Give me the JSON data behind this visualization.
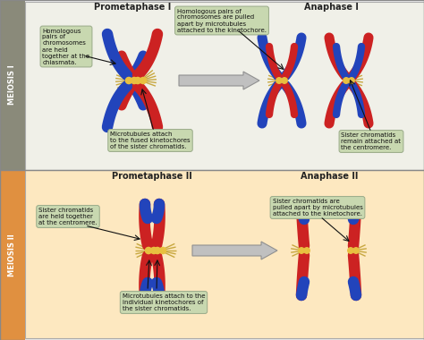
{
  "bg_top": "#f0f0e8",
  "bg_bottom": "#fde8c0",
  "sidebar_top": "#8a8a7a",
  "sidebar_bottom": "#e09040",
  "border_color": "#aaaaaa",
  "blue_chr": "#2244bb",
  "red_chr": "#cc2222",
  "centromere_color": "#e8c040",
  "microtubule_color": "#c8a840",
  "label_box_color": "#c8d8b0",
  "label_edge_color": "#99aa88",
  "text_color": "#111111",
  "title_meiosis_I": "MEIOSIS I",
  "title_meiosis_II": "MEIOSIS II",
  "prometaphase_I": "Prometaphase I",
  "anaphase_I": "Anaphase I",
  "prometaphase_II": "Prometaphase II",
  "anaphase_II": "Anaphase II",
  "label1": "Homologous\npairs of\nchromosomes\nare held\ntogether at the\nchiasmata.",
  "label2": "Homologous pairs of\nchromosomes are pulled\napart by microtubules\nattached to the kinetochore.",
  "label3": "Microtubules attach\nto the fused kinetochores\nof the sister chromatids.",
  "label4": "Sister chromatids\nremain attached at\nthe centromere.",
  "label5": "Sister chromatids\nare held together\nat the centromere.",
  "label6": "Sister chromatids are\npulled apart by microtubules\nattached to the kinetochore.",
  "label7": "Microtubules attach to the\nindividual kinetochores of\nthe sister chromatids.",
  "fig_width": 4.74,
  "fig_height": 3.8,
  "dpi": 100
}
